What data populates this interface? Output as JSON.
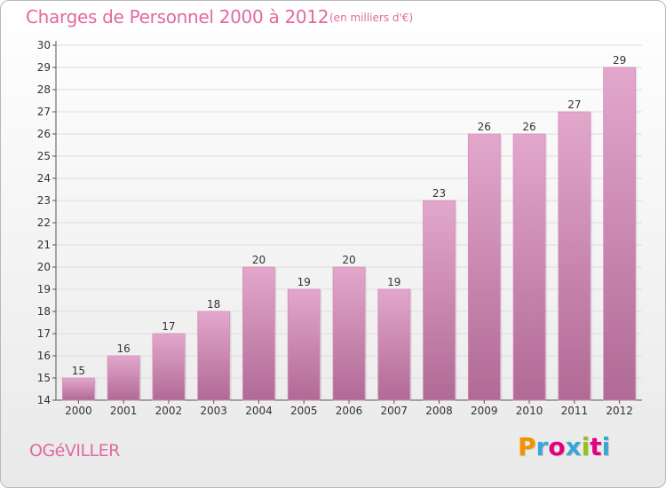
{
  "header": {
    "title": "Charges de Personnel 2000 à 2012",
    "subtitle": "(en milliers d'€)"
  },
  "footer": {
    "commune": "OGéVILLER",
    "logo": "Proxiti",
    "logo_colors": [
      "#f39200",
      "#3aa6d6",
      "#e4007d",
      "#3aa6d6",
      "#95c11f",
      "#e4007d",
      "#3aa6d6"
    ]
  },
  "colors": {
    "bar_light": "#e3a7cc",
    "bar_dark": "#b06a95",
    "title": "#e06aa0",
    "grid": "#dddddd",
    "axis": "#555555"
  },
  "chart_data": {
    "type": "bar",
    "title": "Charges de Personnel 2000 à 2012",
    "subtitle": "(en milliers d'€)",
    "categories": [
      "2000",
      "2001",
      "2002",
      "2003",
      "2004",
      "2005",
      "2006",
      "2007",
      "2008",
      "2009",
      "2010",
      "2011",
      "2012"
    ],
    "values": [
      15,
      16,
      17,
      18,
      20,
      19,
      20,
      19,
      23,
      26,
      26,
      27,
      29
    ],
    "ylim": [
      14,
      30
    ],
    "yticks": [
      14,
      15,
      16,
      17,
      18,
      19,
      20,
      21,
      22,
      23,
      24,
      25,
      26,
      27,
      28,
      29,
      30
    ],
    "grid": true,
    "xlabel": "",
    "ylabel": ""
  }
}
